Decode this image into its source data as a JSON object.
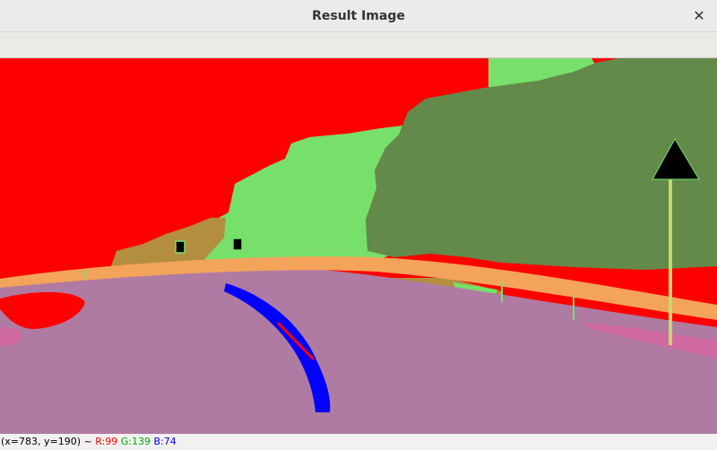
{
  "window": {
    "title": "Result Image",
    "close_glyph": "✕"
  },
  "status": {
    "coords": "(x=783, y=190) ~",
    "r": "R:99",
    "g": "G:139",
    "b": "B:74"
  },
  "colors": {
    "sky": "#ff0000",
    "vegetation_light": "#76e06a",
    "vegetation_dark": "#638a4a",
    "terrain": "#b48e3f",
    "road": "#b07ba2",
    "guardrail": "#f4a35a",
    "lane_detection": "#0000ff",
    "direction_line": "#ff0000",
    "sign": "#000000",
    "pole": "#c4d86a"
  },
  "icons": {
    "close": "close-icon"
  }
}
